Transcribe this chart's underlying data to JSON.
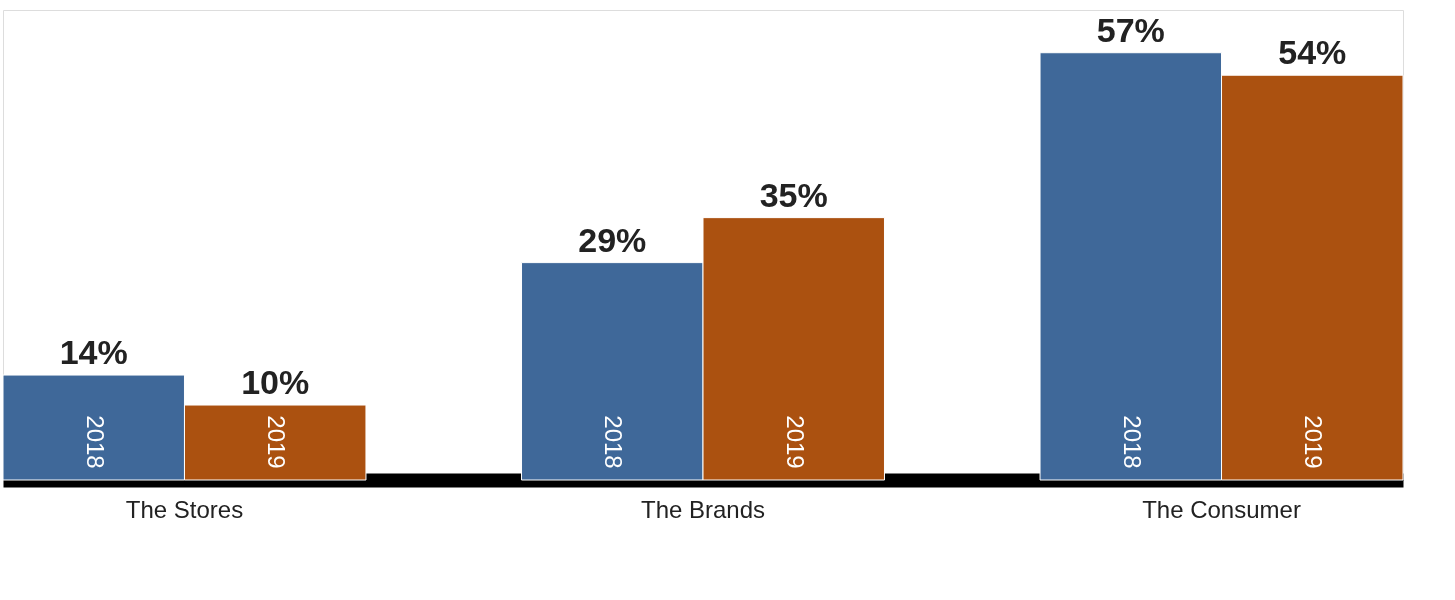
{
  "chart_data": {
    "type": "bar",
    "categories": [
      "The Stores",
      "The Brands",
      "The Consumer"
    ],
    "series": [
      {
        "name": "2018",
        "color": "#3f6899",
        "values": [
          14,
          29,
          57
        ],
        "value_labels": [
          "14%",
          "29%",
          "57%"
        ]
      },
      {
        "name": "2019",
        "color": "#ab5110",
        "values": [
          10,
          35,
          54
        ],
        "value_labels": [
          "10%",
          "35%",
          "54%"
        ]
      }
    ],
    "legend": false,
    "grid": false
  }
}
